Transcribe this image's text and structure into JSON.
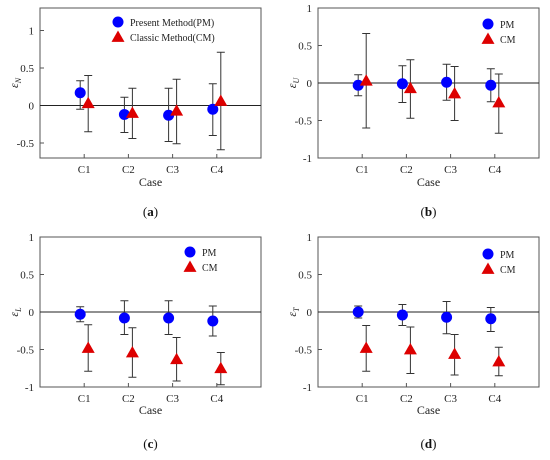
{
  "colors": {
    "pm": "#0000ff",
    "cm": "#dd0000",
    "axis": "#555555",
    "errorbar": "#333333"
  },
  "panel_labels": [
    "a",
    "b",
    "c",
    "d"
  ],
  "chart_data": [
    {
      "type": "scatter",
      "panel": "a",
      "ylabel": "ε",
      "ylabel_sub": "N",
      "xlabel": "Case",
      "categories": [
        "C1",
        "C2",
        "C3",
        "C4"
      ],
      "ylim": [
        -0.7,
        1.3
      ],
      "yticks": [
        -0.5,
        0,
        0.5,
        1
      ],
      "ytick_labels": [
        "-0.5",
        "0",
        "0.5",
        "1"
      ],
      "zero_line": true,
      "legend_position": "top-right",
      "series": [
        {
          "name": "Present Method(PM)",
          "marker": "circle",
          "values": [
            0.17,
            -0.12,
            -0.13,
            -0.05
          ],
          "err_low": [
            -0.05,
            -0.36,
            -0.48,
            -0.4
          ],
          "err_high": [
            0.33,
            0.11,
            0.23,
            0.29
          ]
        },
        {
          "name": "Classic Method(CM)",
          "marker": "triangle",
          "values": [
            0.03,
            -0.1,
            -0.07,
            0.06
          ],
          "err_low": [
            -0.35,
            -0.44,
            -0.51,
            -0.59
          ],
          "err_high": [
            0.4,
            0.23,
            0.35,
            0.71
          ]
        }
      ]
    },
    {
      "type": "scatter",
      "panel": "b",
      "ylabel": "ε",
      "ylabel_sub": "U",
      "xlabel": "Case",
      "categories": [
        "C1",
        "C2",
        "C3",
        "C4"
      ],
      "ylim": [
        -1,
        1
      ],
      "yticks": [
        -1,
        -0.5,
        0,
        0.5,
        1
      ],
      "ytick_labels": [
        "-1",
        "-0.5",
        "0",
        "0.5",
        "1"
      ],
      "zero_line": true,
      "legend_position": "top-right",
      "series": [
        {
          "name": "PM",
          "marker": "circle",
          "values": [
            -0.03,
            -0.01,
            0.01,
            -0.03
          ],
          "err_low": [
            -0.17,
            -0.26,
            -0.23,
            -0.25
          ],
          "err_high": [
            0.11,
            0.23,
            0.25,
            0.19
          ]
        },
        {
          "name": "CM",
          "marker": "triangle",
          "values": [
            0.03,
            -0.07,
            -0.14,
            -0.26
          ],
          "err_low": [
            -0.6,
            -0.47,
            -0.5,
            -0.67
          ],
          "err_high": [
            0.66,
            0.31,
            0.22,
            0.12
          ]
        }
      ]
    },
    {
      "type": "scatter",
      "panel": "c",
      "ylabel": "ε",
      "ylabel_sub": "L",
      "xlabel": "Case",
      "categories": [
        "C1",
        "C2",
        "C3",
        "C4"
      ],
      "ylim": [
        -1,
        1
      ],
      "yticks": [
        -1,
        -0.5,
        0,
        0.5,
        1
      ],
      "ytick_labels": [
        "-1",
        "-0.5",
        "0",
        "0.5",
        "1"
      ],
      "zero_line": true,
      "legend_position": "top-right",
      "series": [
        {
          "name": "PM",
          "marker": "circle",
          "values": [
            -0.03,
            -0.08,
            -0.08,
            -0.12
          ],
          "err_low": [
            -0.13,
            -0.3,
            -0.3,
            -0.32
          ],
          "err_high": [
            0.07,
            0.15,
            0.15,
            0.08
          ]
        },
        {
          "name": "CM",
          "marker": "triangle",
          "values": [
            -0.48,
            -0.54,
            -0.63,
            -0.75
          ],
          "err_low": [
            -0.79,
            -0.87,
            -0.92,
            -0.97
          ],
          "err_high": [
            -0.17,
            -0.21,
            -0.34,
            -0.54
          ]
        }
      ]
    },
    {
      "type": "scatter",
      "panel": "d",
      "ylabel": "ε",
      "ylabel_sub": "T",
      "xlabel": "Case",
      "categories": [
        "C1",
        "C2",
        "C3",
        "C4"
      ],
      "ylim": [
        -1,
        1
      ],
      "yticks": [
        -1,
        -0.5,
        0,
        0.5,
        1
      ],
      "ytick_labels": [
        "-1",
        "-0.5",
        "0",
        "0.5",
        "1"
      ],
      "zero_line": true,
      "legend_position": "top-right",
      "series": [
        {
          "name": "PM",
          "marker": "circle",
          "values": [
            0.0,
            -0.04,
            -0.07,
            -0.09
          ],
          "err_low": [
            -0.08,
            -0.18,
            -0.29,
            -0.26
          ],
          "err_high": [
            0.08,
            0.1,
            0.14,
            0.06
          ]
        },
        {
          "name": "CM",
          "marker": "triangle",
          "values": [
            -0.48,
            -0.5,
            -0.56,
            -0.66
          ],
          "err_low": [
            -0.79,
            -0.82,
            -0.84,
            -0.85
          ],
          "err_high": [
            -0.18,
            -0.2,
            -0.3,
            -0.47
          ]
        }
      ]
    }
  ]
}
